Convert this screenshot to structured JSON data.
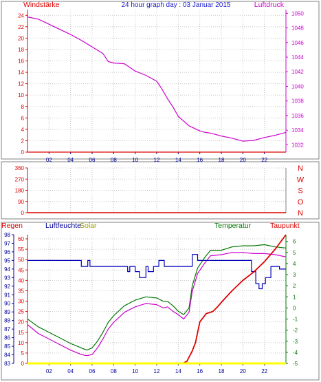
{
  "title": "24 hour graph day : 03 Januar 2015",
  "colors": {
    "frame": "#808080",
    "grid": "#c8c8c8",
    "red": "#dd0000",
    "magenta": "#cc00cc",
    "blue": "#0000bb",
    "olive": "#999900",
    "green": "#007700",
    "yellow": "#ffff00",
    "navy": "#000099"
  },
  "chart_data": [
    {
      "type": "line",
      "left_label": "Windstärke",
      "right_label": "Luftdruck",
      "x_ticks": [
        "02",
        "04",
        "06",
        "08",
        "10",
        "12",
        "14",
        "16",
        "18",
        "20",
        "22"
      ],
      "yleft_ticks": [
        "0",
        "2",
        "4",
        "6",
        "8",
        "10",
        "12",
        "14",
        "16",
        "18",
        "20",
        "22",
        "24"
      ],
      "yleft_range": [
        0,
        25
      ],
      "yright_ticks": [
        "1032",
        "1034",
        "1036",
        "1038",
        "1040",
        "1042",
        "1044",
        "1046",
        "1048",
        "1050"
      ],
      "yright_range": [
        1031,
        1050.5
      ],
      "x_range": [
        0,
        24
      ],
      "grid": true,
      "series": [
        {
          "axis": "left",
          "color": "red",
          "x": [
            0,
            24
          ],
          "y": [
            0,
            0
          ]
        },
        {
          "axis": "right",
          "color": "magenta",
          "x": [
            0,
            1,
            2,
            3,
            4,
            5,
            6,
            7,
            7.5,
            8,
            9,
            9.5,
            10,
            11,
            12,
            12.5,
            13,
            13.5,
            14,
            15,
            16,
            16.5,
            17,
            18,
            19,
            20,
            21,
            22,
            23,
            24
          ],
          "y": [
            1049.5,
            1049.2,
            1048.5,
            1047.8,
            1047.1,
            1046.3,
            1045.4,
            1044.5,
            1043.4,
            1043.2,
            1043.1,
            1042.6,
            1042.1,
            1041.5,
            1040.7,
            1039.6,
            1038.3,
            1037.2,
            1035.9,
            1034.6,
            1033.9,
            1033.7,
            1033.6,
            1033.2,
            1032.9,
            1032.5,
            1032.6,
            1033.0,
            1033.3,
            1033.7
          ]
        }
      ]
    },
    {
      "type": "line",
      "yleft_ticks": [
        "0",
        "90",
        "180",
        "270",
        "360"
      ],
      "yleft_range": [
        0,
        360
      ],
      "direction_labels": [
        "N",
        "W",
        "S",
        "O",
        "N"
      ],
      "x_range": [
        0,
        24
      ],
      "grid": true,
      "series": [
        {
          "axis": "left",
          "color": "red",
          "x": [
            0,
            24
          ],
          "y": [
            0,
            0
          ]
        }
      ]
    },
    {
      "type": "line",
      "labels": {
        "regen": "Regen",
        "luftfeuchte": "Luftfeuchte",
        "solar": "Solar",
        "temperatur": "Temperatur",
        "taupunkt": "Taupunkt"
      },
      "x_ticks": [
        "02",
        "04",
        "06",
        "08",
        "10",
        "12",
        "14",
        "16",
        "18",
        "20",
        "22"
      ],
      "x_range": [
        0,
        24
      ],
      "y_regen_ticks": [
        "0",
        "5",
        "10",
        "15",
        "20",
        "25",
        "30",
        "35",
        "40",
        "45",
        "50",
        "55",
        "60"
      ],
      "y_regen_range": [
        0,
        62
      ],
      "y_humidity_ticks": [
        "83",
        "84",
        "85",
        "86",
        "87",
        "88",
        "89",
        "90",
        "91",
        "92",
        "93",
        "94",
        "95",
        "96",
        "97",
        "98"
      ],
      "y_humidity_range": [
        83,
        98
      ],
      "y_temp_ticks": [
        "-5",
        "-4",
        "-3",
        "-2",
        "-1",
        "0",
        "1",
        "2",
        "3",
        "4",
        "5",
        "6"
      ],
      "y_temp_range": [
        -5,
        6.6
      ],
      "grid": true,
      "series": [
        {
          "name": "Regen",
          "axis": "regen",
          "color": "red",
          "x": [
            0,
            14.4,
            14.8,
            15.0,
            15.3,
            15.6,
            16.0,
            16.6,
            17.2,
            17.6,
            18.1,
            19.0,
            20.0,
            21.0,
            22.0,
            23.0,
            24.0
          ],
          "y": [
            0,
            0,
            1,
            3,
            6,
            10,
            20,
            24,
            25,
            27,
            30,
            35,
            40,
            44,
            49,
            55,
            62
          ]
        },
        {
          "name": "Luftfeuchte",
          "axis": "humidity",
          "color": "blue",
          "x": [
            0,
            5.0,
            5.0,
            5.6,
            5.6,
            5.8,
            5.8,
            9.3,
            9.3,
            9.5,
            9.5,
            10.0,
            10.0,
            10.4,
            10.4,
            11.0,
            11.0,
            11.2,
            11.2,
            11.7,
            11.7,
            12.2,
            12.2,
            12.7,
            12.7,
            15.3,
            15.3,
            15.8,
            15.8,
            20.8,
            20.8,
            21.2,
            21.2,
            21.5,
            21.5,
            21.8,
            21.8,
            22.1,
            22.1,
            22.6,
            22.6,
            23.4,
            23.4,
            24
          ],
          "y": [
            95,
            95,
            94.3,
            94.3,
            95,
            95,
            94.3,
            94.3,
            93.7,
            93.7,
            94.3,
            94.3,
            93.7,
            93.7,
            93,
            93,
            94.3,
            94.3,
            93.7,
            93.7,
            94.3,
            94.3,
            95,
            95,
            94.3,
            94.3,
            95.7,
            95.7,
            95,
            95,
            93.7,
            93.7,
            92.3,
            92.3,
            91.7,
            91.7,
            92.3,
            92.3,
            93,
            93,
            94.3,
            94.3,
            94,
            94
          ]
        },
        {
          "name": "Temperatur",
          "axis": "temp",
          "color": "green",
          "x": [
            0,
            1,
            2,
            3,
            4,
            5,
            5.5,
            6,
            6.5,
            7,
            7.5,
            8,
            9,
            10,
            11,
            12,
            12.6,
            13,
            13.5,
            14,
            14.5,
            15.0,
            15.3,
            15.8,
            16.5,
            17,
            18,
            19,
            20,
            21,
            22,
            23,
            24
          ],
          "y": [
            -1.0,
            -1.7,
            -2.2,
            -2.7,
            -3.2,
            -3.6,
            -3.8,
            -3.6,
            -3.0,
            -2.2,
            -1.3,
            -0.7,
            0.2,
            0.7,
            1.0,
            0.9,
            0.6,
            0.6,
            0.2,
            -0.3,
            -0.6,
            0.0,
            2.0,
            3.6,
            4.6,
            5.2,
            5.2,
            5.5,
            5.6,
            5.6,
            5.7,
            5.5,
            5.4
          ]
        },
        {
          "name": "Taupunkt",
          "axis": "temp",
          "color": "magenta",
          "x": [
            0,
            1,
            2,
            3,
            4,
            5,
            5.5,
            6,
            6.5,
            7,
            7.5,
            8,
            9,
            10,
            11,
            12,
            12.6,
            13,
            13.5,
            14,
            14.5,
            15.0,
            15.3,
            15.8,
            16.5,
            17,
            18,
            19,
            20,
            21,
            22,
            23,
            24
          ],
          "y": [
            -1.5,
            -2.3,
            -2.8,
            -3.3,
            -3.8,
            -4.2,
            -4.3,
            -4.2,
            -3.6,
            -2.8,
            -1.9,
            -1.3,
            -0.4,
            0.1,
            0.4,
            0.3,
            0.0,
            0.1,
            -0.3,
            -0.6,
            -1.0,
            -0.4,
            1.5,
            3.1,
            4.1,
            4.7,
            4.8,
            5.0,
            5.0,
            4.9,
            4.9,
            4.8,
            4.6
          ]
        },
        {
          "name": "Solar",
          "axis": "regen",
          "color": "yellow",
          "x": [
            0,
            24
          ],
          "y": [
            0,
            0
          ]
        }
      ]
    }
  ]
}
